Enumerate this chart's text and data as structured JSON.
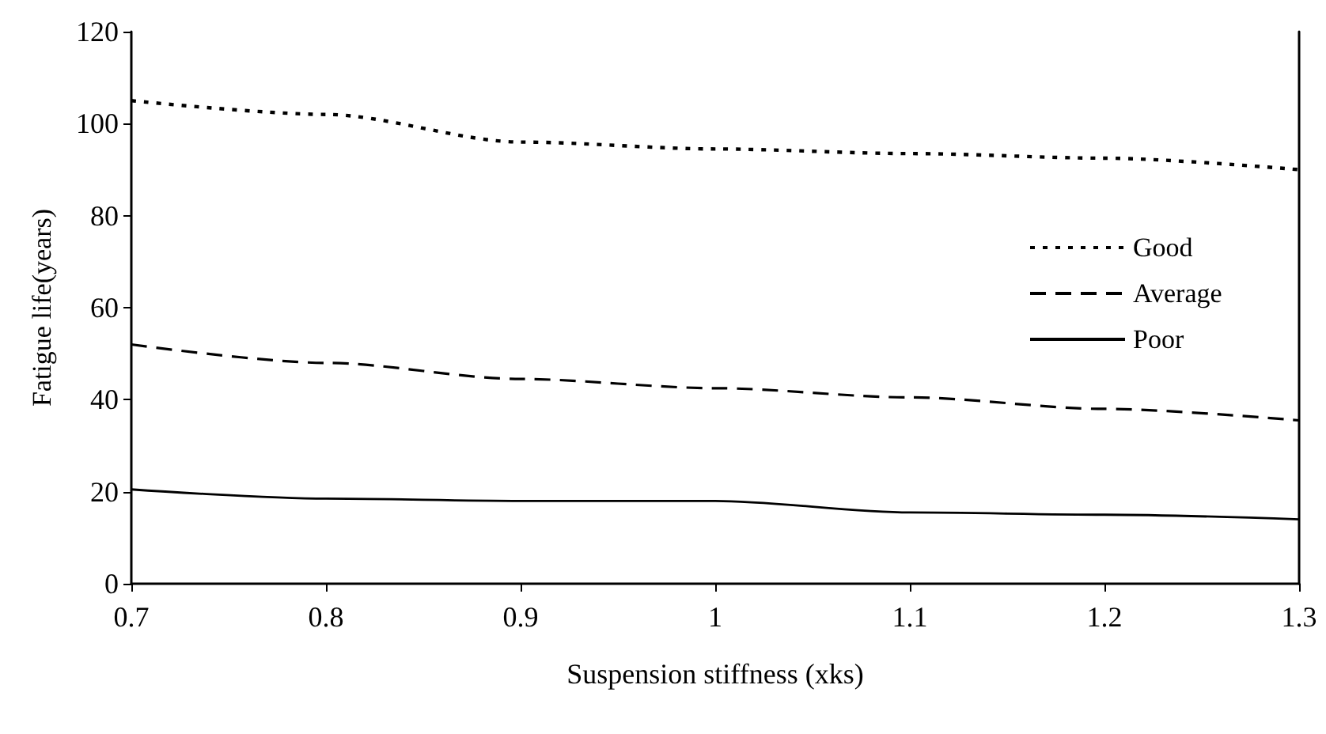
{
  "chart_data": {
    "type": "line",
    "xlabel": "Suspension stiffness (xks)",
    "ylabel": "Fatigue life(years)",
    "x": [
      0.7,
      0.8,
      0.9,
      1.0,
      1.1,
      1.2,
      1.3
    ],
    "series": [
      {
        "name": "Good",
        "color": "#000000",
        "line_style": "dotted",
        "values": [
          105,
          102,
          96,
          94.5,
          93.5,
          92.5,
          90
        ]
      },
      {
        "name": "Average",
        "color": "#000000",
        "line_style": "dashed",
        "values": [
          52,
          48,
          44.5,
          42.5,
          40.5,
          38,
          35.5
        ]
      },
      {
        "name": "Poor",
        "color": "#000000",
        "line_style": "solid",
        "values": [
          20.5,
          18.5,
          18,
          18,
          15.5,
          15,
          14
        ]
      }
    ],
    "xlim": [
      0.7,
      1.3
    ],
    "xticks": [
      {
        "value": 0.7,
        "label": "0.7"
      },
      {
        "value": 0.8,
        "label": "0.8"
      },
      {
        "value": 0.9,
        "label": "0.9"
      },
      1,
      {
        "value": 1.1,
        "label": "1.1"
      },
      {
        "value": 1.2,
        "label": "1.2"
      },
      {
        "value": 1.3,
        "label": "1.3"
      }
    ],
    "ylim": [
      0,
      120
    ],
    "yticks": [
      0,
      20,
      40,
      60,
      80,
      100,
      120
    ],
    "legend": "right",
    "marker": "none",
    "grid": false
  }
}
